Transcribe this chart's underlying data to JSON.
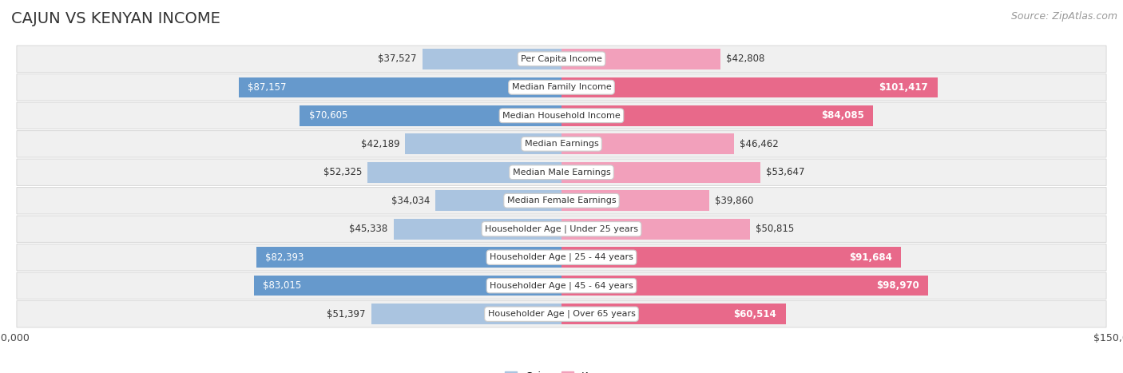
{
  "title": "CAJUN VS KENYAN INCOME",
  "source": "Source: ZipAtlas.com",
  "categories": [
    "Per Capita Income",
    "Median Family Income",
    "Median Household Income",
    "Median Earnings",
    "Median Male Earnings",
    "Median Female Earnings",
    "Householder Age | Under 25 years",
    "Householder Age | 25 - 44 years",
    "Householder Age | 45 - 64 years",
    "Householder Age | Over 65 years"
  ],
  "cajun_values": [
    37527,
    87157,
    70605,
    42189,
    52325,
    34034,
    45338,
    82393,
    83015,
    51397
  ],
  "kenyan_values": [
    42808,
    101417,
    84085,
    46462,
    53647,
    39860,
    50815,
    91684,
    98970,
    60514
  ],
  "cajun_color_light": "#aac4e0",
  "cajun_color_dark": "#6699cc",
  "kenyan_color_light": "#f2a0bb",
  "kenyan_color_dark": "#e8698a",
  "max_value": 150000,
  "background_color": "#ffffff",
  "row_bg_color": "#f0f0f0",
  "row_border_color": "#d8d8d8",
  "title_fontsize": 14,
  "source_fontsize": 9,
  "bar_label_fontsize": 8.5,
  "category_fontsize": 8,
  "caj_dark_threshold": 60000,
  "ken_dark_threshold": 60000
}
